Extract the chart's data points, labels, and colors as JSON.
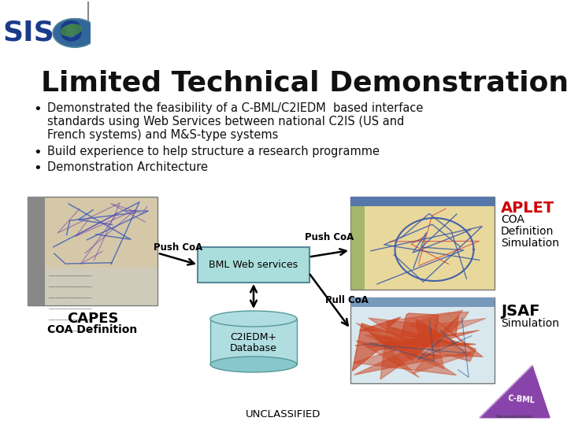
{
  "title": "Limited Technical Demonstration",
  "bullet1_line1": "Demonstrated the feasibility of a C-BML/C2IEDM  based interface",
  "bullet1_line2": "standards using Web Services between national C2IS (US and",
  "bullet1_line3": "French systems) and M&S-type systems",
  "bullet2": "Build experience to help structure a research programme",
  "bullet3": "Demonstration Architecture",
  "label_capes": "CAPES",
  "label_capes_sub": "COA Definition",
  "label_aplet": "APLET",
  "label_aplet_sub1": "COA",
  "label_aplet_sub2": "Definition",
  "label_aplet_sub3": "Simulation",
  "label_jsaf": "JSAF",
  "label_jsaf_sub": "Simulation",
  "label_bml": "BML Web services",
  "label_c2iedm": "C2IEDM+",
  "label_database": "Database",
  "label_push_coa1": "Push CoA",
  "label_push_coa2": "Push CoA",
  "label_pull_coa": "Pull CoA",
  "label_unclassified": "UNCLASSIFIED",
  "bg_color": "#ffffff",
  "title_color": "#111111",
  "bullet_color": "#111111",
  "bml_box_color": "#aadedc",
  "aplet_color": "#cc0000",
  "jsaf_color": "#000000",
  "capes_color": "#000000",
  "arrow_color": "#111111",
  "siso_text_color": "#1a3a8a",
  "cbml_tri_color": "#8844aa",
  "db_color": "#b0dde0"
}
